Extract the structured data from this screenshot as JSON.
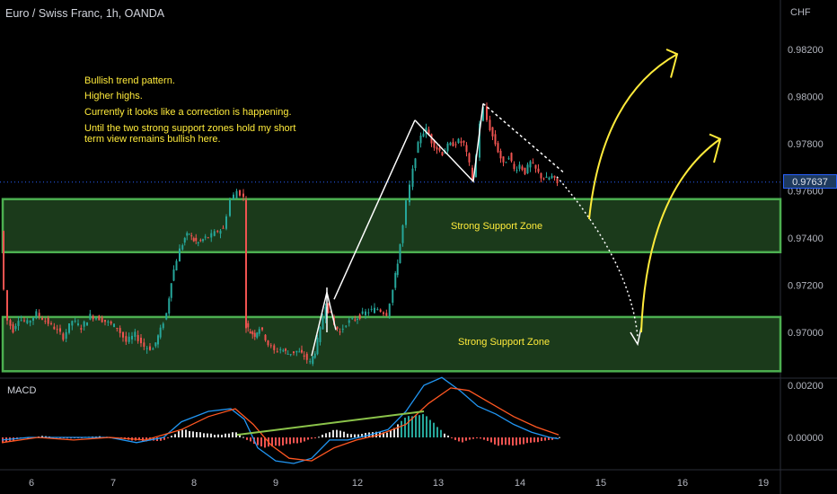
{
  "header": {
    "title": "Euro / Swiss Franc, 1h, OANDA"
  },
  "notes": [
    "Bullish trend pattern.",
    "Higher highs.",
    "Currently it looks like a correction is happening.",
    "Until the two strong support zones hold my short",
    "term view remains bullish here."
  ],
  "axis": {
    "currency": "CHF",
    "current_price": "0.97637"
  },
  "zones": [
    {
      "label": "Strong Support Zone",
      "from": 0.9734,
      "to": 0.97565
    },
    {
      "label": "Strong Support Zone",
      "from": 0.96835,
      "to": 0.97065
    }
  ],
  "macd": {
    "label": "MACD"
  },
  "colors": {
    "up": "#26a69a",
    "down": "#ef5350",
    "zone_fill": "#1b3a1b",
    "zone_border": "#4caf50",
    "annotation": "#ffeb3b",
    "macd_line": "#2196f3",
    "signal_line": "#ff5722"
  },
  "chart_data": {
    "type": "candlestick",
    "price_ticks": [
      "0.98200",
      "0.98000",
      "0.97800",
      "0.97600",
      "0.97400",
      "0.97200",
      "0.97000"
    ],
    "macd_ticks": [
      "0.00200",
      "0.00000"
    ],
    "x_ticks": [
      "6",
      "7",
      "8",
      "9",
      "12",
      "13",
      "14",
      "15",
      "16",
      "19"
    ],
    "current_price": 0.97637,
    "close_path": [
      [
        0,
        0.9743
      ],
      [
        4,
        0.9718
      ],
      [
        8,
        0.9705
      ],
      [
        14,
        0.9701
      ],
      [
        20,
        0.9706
      ],
      [
        30,
        0.9704
      ],
      [
        40,
        0.9708
      ],
      [
        50,
        0.9705
      ],
      [
        60,
        0.9702
      ],
      [
        70,
        0.9698
      ],
      [
        80,
        0.9705
      ],
      [
        90,
        0.9702
      ],
      [
        100,
        0.9707
      ],
      [
        110,
        0.9706
      ],
      [
        120,
        0.9704
      ],
      [
        130,
        0.9702
      ],
      [
        140,
        0.9696
      ],
      [
        150,
        0.9699
      ],
      [
        160,
        0.9694
      ],
      [
        170,
        0.9693
      ],
      [
        178,
        0.9701
      ],
      [
        185,
        0.9708
      ],
      [
        190,
        0.9722
      ],
      [
        196,
        0.9731
      ],
      [
        200,
        0.9735
      ],
      [
        205,
        0.974
      ],
      [
        210,
        0.9742
      ],
      [
        215,
        0.9739
      ],
      [
        220,
        0.9738
      ],
      [
        228,
        0.974
      ],
      [
        235,
        0.9741
      ],
      [
        242,
        0.9743
      ],
      [
        248,
        0.9744
      ],
      [
        252,
        0.975
      ],
      [
        256,
        0.9756
      ],
      [
        260,
        0.9758
      ],
      [
        263,
        0.976
      ],
      [
        267,
        0.9759
      ],
      [
        271,
        0.9757
      ],
      [
        273,
        0.9703
      ],
      [
        278,
        0.97
      ],
      [
        283,
        0.9699
      ],
      [
        288,
        0.9702
      ],
      [
        292,
        0.97
      ],
      [
        298,
        0.9695
      ],
      [
        305,
        0.9692
      ],
      [
        312,
        0.9693
      ],
      [
        320,
        0.9691
      ],
      [
        330,
        0.9692
      ],
      [
        338,
        0.969
      ],
      [
        345,
        0.9687
      ],
      [
        350,
        0.9692
      ],
      [
        356,
        0.9701
      ],
      [
        362,
        0.9712
      ],
      [
        368,
        0.9707
      ],
      [
        372,
        0.9703
      ],
      [
        378,
        0.97
      ],
      [
        385,
        0.9704
      ],
      [
        392,
        0.9705
      ],
      [
        400,
        0.9707
      ],
      [
        410,
        0.9709
      ],
      [
        420,
        0.971
      ],
      [
        430,
        0.9708
      ],
      [
        437,
        0.9718
      ],
      [
        442,
        0.973
      ],
      [
        448,
        0.9745
      ],
      [
        452,
        0.9755
      ],
      [
        456,
        0.9762
      ],
      [
        462,
        0.9775
      ],
      [
        468,
        0.9784
      ],
      [
        474,
        0.9786
      ],
      [
        480,
        0.9781
      ],
      [
        486,
        0.9778
      ],
      [
        492,
        0.9776
      ],
      [
        498,
        0.9779
      ],
      [
        504,
        0.978
      ],
      [
        510,
        0.9781
      ],
      [
        516,
        0.978
      ],
      [
        522,
        0.9771
      ],
      [
        526,
        0.9765
      ],
      [
        530,
        0.9775
      ],
      [
        534,
        0.9789
      ],
      [
        538,
        0.9795
      ],
      [
        542,
        0.979
      ],
      [
        548,
        0.9783
      ],
      [
        554,
        0.9777
      ],
      [
        560,
        0.9771
      ],
      [
        566,
        0.9775
      ],
      [
        572,
        0.9769
      ],
      [
        578,
        0.9771
      ],
      [
        584,
        0.9768
      ],
      [
        590,
        0.9772
      ],
      [
        596,
        0.9769
      ],
      [
        602,
        0.9766
      ],
      [
        608,
        0.9765
      ],
      [
        614,
        0.9766
      ],
      [
        620,
        0.9763
      ]
    ],
    "macd_hist": [
      [
        0,
        -0.0002
      ],
      [
        20,
        -5e-05
      ],
      [
        40,
        5e-05
      ],
      [
        60,
        0.0
      ],
      [
        80,
        -5e-05
      ],
      [
        100,
        5e-05
      ],
      [
        120,
        0.0
      ],
      [
        140,
        -0.0001
      ],
      [
        160,
        -0.00015
      ],
      [
        180,
        -0.0001
      ],
      [
        200,
        0.0003
      ],
      [
        220,
        0.0002
      ],
      [
        240,
        0.0001
      ],
      [
        260,
        0.0002
      ],
      [
        272,
        -0.0001
      ],
      [
        290,
        -0.0004
      ],
      [
        310,
        -0.0003
      ],
      [
        330,
        -0.0002
      ],
      [
        350,
        0.0
      ],
      [
        370,
        0.0003
      ],
      [
        390,
        0.0001
      ],
      [
        410,
        0.0002
      ],
      [
        430,
        0.0002
      ],
      [
        450,
        0.0008
      ],
      [
        470,
        0.0009
      ],
      [
        490,
        0.0002
      ],
      [
        510,
        -0.0002
      ],
      [
        530,
        0.0
      ],
      [
        550,
        -0.0003
      ],
      [
        570,
        -0.0003
      ],
      [
        590,
        -0.0002
      ],
      [
        610,
        -0.0001
      ],
      [
        620,
        0.0
      ]
    ],
    "macd_line": [
      [
        0,
        -0.0001
      ],
      [
        30,
        0.0
      ],
      [
        60,
        0.0
      ],
      [
        90,
        0.0
      ],
      [
        120,
        0.0
      ],
      [
        150,
        -0.0002
      ],
      [
        180,
        0.0
      ],
      [
        200,
        0.0006
      ],
      [
        230,
        0.001
      ],
      [
        255,
        0.0011
      ],
      [
        270,
        0.0007
      ],
      [
        285,
        -0.0004
      ],
      [
        305,
        -0.0009
      ],
      [
        325,
        -0.001
      ],
      [
        345,
        -0.0008
      ],
      [
        365,
        -0.0001
      ],
      [
        385,
        -0.0001
      ],
      [
        410,
        0.0001
      ],
      [
        430,
        0.0003
      ],
      [
        450,
        0.001
      ],
      [
        470,
        0.002
      ],
      [
        490,
        0.0023
      ],
      [
        510,
        0.0018
      ],
      [
        530,
        0.0012
      ],
      [
        550,
        0.0009
      ],
      [
        570,
        0.0005
      ],
      [
        590,
        0.0002
      ],
      [
        610,
        0.0
      ],
      [
        620,
        -5e-05
      ]
    ],
    "signal_line": [
      [
        0,
        -0.0002
      ],
      [
        40,
        0.0
      ],
      [
        80,
        -0.0001
      ],
      [
        120,
        0.0
      ],
      [
        160,
        -0.0001
      ],
      [
        200,
        0.0003
      ],
      [
        230,
        0.0008
      ],
      [
        260,
        0.0011
      ],
      [
        280,
        0.0005
      ],
      [
        300,
        -0.0003
      ],
      [
        320,
        -0.0008
      ],
      [
        345,
        -0.0009
      ],
      [
        370,
        -0.0004
      ],
      [
        395,
        -0.0001
      ],
      [
        420,
        0.0001
      ],
      [
        450,
        0.0005
      ],
      [
        475,
        0.0013
      ],
      [
        500,
        0.0019
      ],
      [
        520,
        0.0018
      ],
      [
        545,
        0.0013
      ],
      [
        570,
        0.0008
      ],
      [
        595,
        0.0004
      ],
      [
        620,
        0.0001
      ]
    ]
  }
}
